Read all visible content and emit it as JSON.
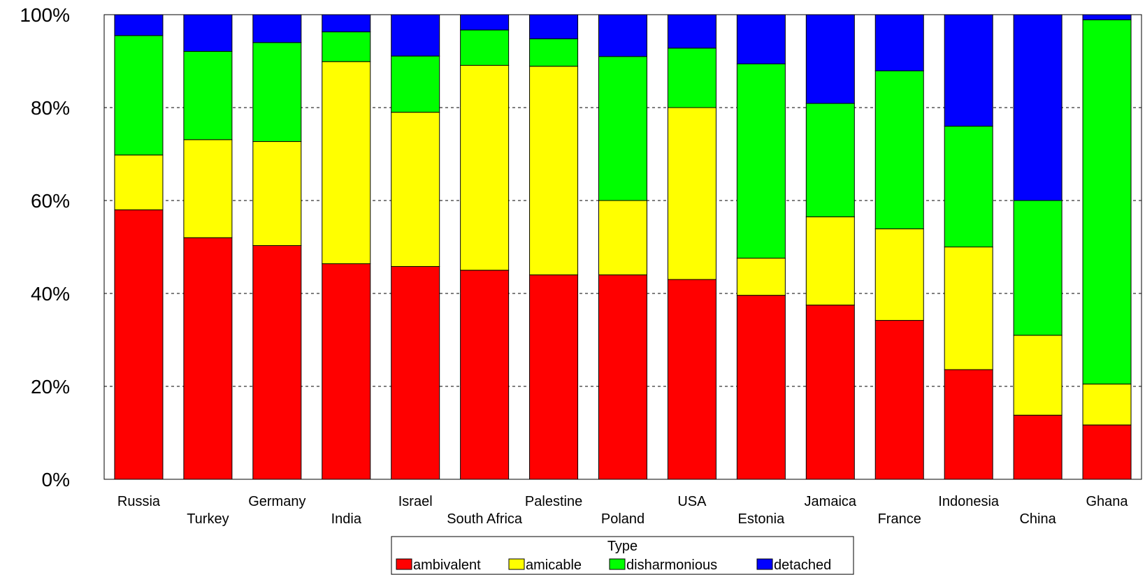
{
  "chart_data": {
    "type": "bar",
    "stacked": true,
    "percent_scale": true,
    "categories": [
      "Russia",
      "Turkey",
      "Germany",
      "India",
      "Israel",
      "South Africa",
      "Palestine",
      "Poland",
      "USA",
      "Estonia",
      "Jamaica",
      "France",
      "Indonesia",
      "China",
      "Ghana"
    ],
    "series": [
      {
        "name": "ambivalent",
        "color": "#ff0000",
        "values": [
          58,
          52,
          50.3,
          46.4,
          45.8,
          45,
          44,
          44,
          43,
          39.6,
          37.5,
          34.2,
          23.6,
          13.8,
          11.7
        ]
      },
      {
        "name": "amicable",
        "color": "#ffff00",
        "values": [
          11.8,
          21.1,
          22.4,
          43.5,
          33.2,
          44.1,
          44.9,
          16,
          37,
          8,
          19,
          19.7,
          26.4,
          17.2,
          8.8
        ]
      },
      {
        "name": "disharmonious",
        "color": "#00ff00",
        "values": [
          25.7,
          19,
          21.3,
          6.4,
          12.1,
          7.6,
          5.9,
          31,
          12.8,
          41.8,
          24.4,
          34,
          26,
          29,
          78.4
        ]
      },
      {
        "name": "detached",
        "color": "#0000ff",
        "values": [
          4.5,
          7.9,
          6,
          3.7,
          8.9,
          3.3,
          5.2,
          9,
          7.2,
          10.6,
          19.1,
          12.1,
          24,
          40,
          1.1
        ]
      }
    ],
    "ylim": [
      0,
      100
    ],
    "yticks": [
      "0%",
      "20%",
      "40%",
      "60%",
      "80%",
      "100%"
    ],
    "grid": true,
    "legend": {
      "title": "Type",
      "placement": "bottom-center"
    },
    "title": "",
    "xlabel": "",
    "ylabel": ""
  }
}
